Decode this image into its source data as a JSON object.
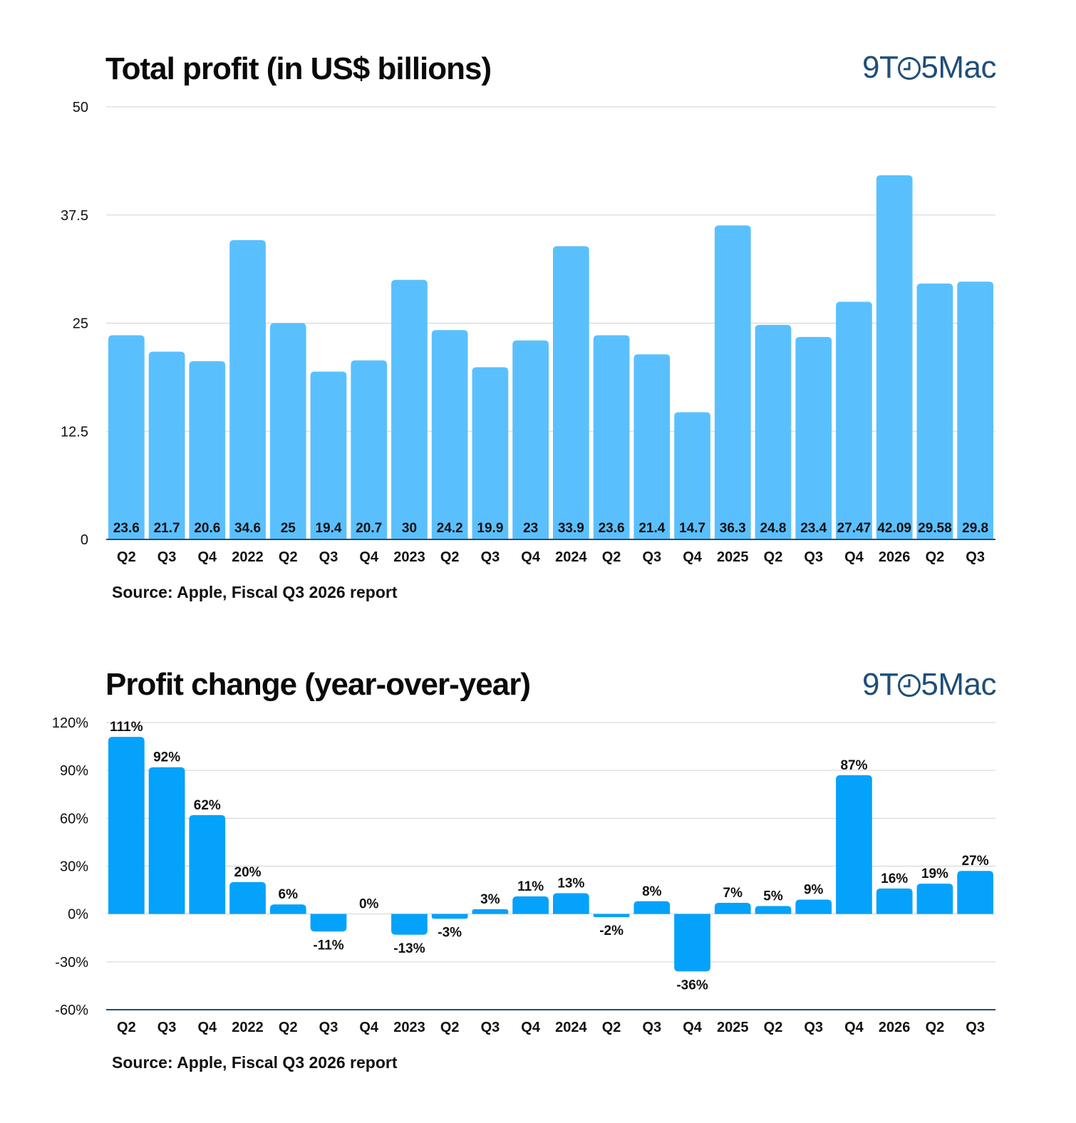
{
  "brand": "9TO5Mac",
  "charts": [
    {
      "title": "Total profit (in US$ billions)",
      "source": "Source: Apple, Fiscal Q3 2026 report",
      "chart_data": {
        "type": "bar",
        "categories": [
          "Q2",
          "Q3",
          "Q4",
          "2022",
          "Q2",
          "Q3",
          "Q4",
          "2023",
          "Q2",
          "Q3",
          "Q4",
          "2024",
          "Q2",
          "Q3",
          "Q4",
          "2025",
          "Q2",
          "Q3",
          "Q4",
          "2026",
          "Q2",
          "Q3"
        ],
        "values": [
          23.6,
          21.7,
          20.6,
          34.6,
          25,
          19.4,
          20.7,
          30,
          24.2,
          19.9,
          23,
          33.9,
          23.6,
          21.4,
          14.7,
          36.3,
          24.8,
          23.4,
          27.47,
          42.09,
          29.58,
          29.8
        ],
        "data_labels": [
          "23.6",
          "21.7",
          "20.6",
          "34.6",
          "25",
          "19.4",
          "20.7",
          "30",
          "24.2",
          "19.9",
          "23",
          "33.9",
          "23.6",
          "21.4",
          "14.7",
          "36.3",
          "24.8",
          "23.4",
          "27.47",
          "42.09",
          "29.58",
          "29.8"
        ],
        "title": "Total profit (in US$ billions)",
        "xlabel": "",
        "ylabel": "",
        "ylim": [
          0,
          50
        ],
        "yticks": [
          0,
          12.5,
          25,
          37.5,
          50
        ],
        "ytick_labels": [
          "0",
          "12.5",
          "25",
          "37.5",
          "50"
        ],
        "grid": true,
        "data_label_position": "inside-bottom",
        "bar_color": "#5ac0fd",
        "axis_color": "#1f4e7a"
      }
    },
    {
      "title": "Profit change (year-over-year)",
      "source": "Source: Apple, Fiscal Q3 2026 report",
      "chart_data": {
        "type": "bar",
        "categories": [
          "Q2",
          "Q3",
          "Q4",
          "2022",
          "Q2",
          "Q3",
          "Q4",
          "2023",
          "Q2",
          "Q3",
          "Q4",
          "2024",
          "Q2",
          "Q3",
          "Q4",
          "2025",
          "Q2",
          "Q3",
          "Q4",
          "2026",
          "Q2",
          "Q3"
        ],
        "values": [
          111,
          92,
          62,
          20,
          6,
          -11,
          0,
          -13,
          -3,
          3,
          11,
          13,
          -2,
          8,
          -36,
          7,
          5,
          9,
          87,
          16,
          19,
          27
        ],
        "data_labels": [
          "111%",
          "92%",
          "62%",
          "20%",
          "6%",
          "-11%",
          "0%",
          "-13%",
          "-3%",
          "3%",
          "11%",
          "13%",
          "-2%",
          "8%",
          "-36%",
          "7%",
          "5%",
          "9%",
          "87%",
          "16%",
          "19%",
          "27%"
        ],
        "title": "Profit change (year-over-year)",
        "xlabel": "",
        "ylabel": "",
        "ylim": [
          -60,
          120
        ],
        "yticks": [
          -60,
          -30,
          0,
          30,
          60,
          90,
          120
        ],
        "ytick_labels": [
          "-60%",
          "-30%",
          "0%",
          "30%",
          "60%",
          "90%",
          "120%"
        ],
        "grid": true,
        "data_label_position": "outside-end",
        "bar_color": "#05a2fb",
        "axis_color": "#1f4e7a"
      }
    }
  ]
}
